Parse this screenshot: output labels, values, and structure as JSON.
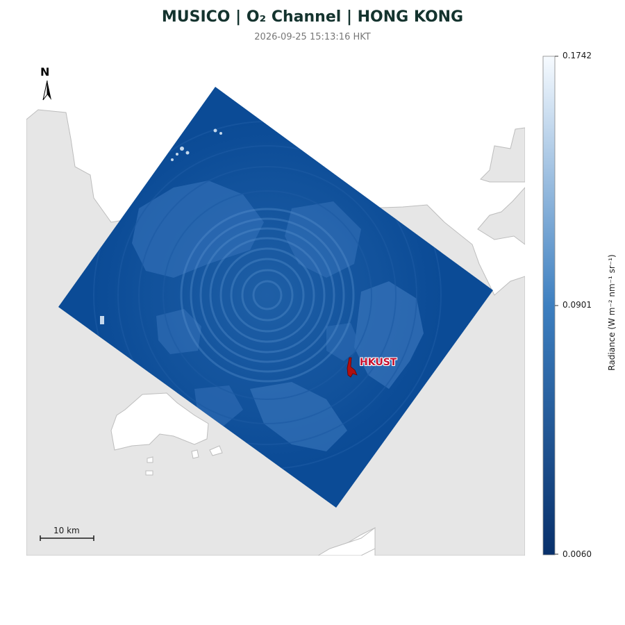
{
  "title": "MUSICO | O₂ Channel | HONG KONG",
  "subtitle": "2026-09-25 15:13:16 HKT",
  "north_label": "N",
  "scale_bar_label": "10 km",
  "site_label": "HKUST",
  "colorbar": {
    "label": "Radiance (W m⁻² nm⁻¹ sr⁻¹)",
    "max_label": "0.1742",
    "mid_label": "0.0901",
    "min_label": "0.0060",
    "color_low": "#08306b",
    "color_mid": "#4a8fc9",
    "color_high": "#f7fbff"
  },
  "colors": {
    "land": "#e6e6e6",
    "water": "#ffffff",
    "coast": "#bdbdbd",
    "swath": "#0b4b96",
    "marker": "#b01010",
    "title": "#14332e"
  }
}
